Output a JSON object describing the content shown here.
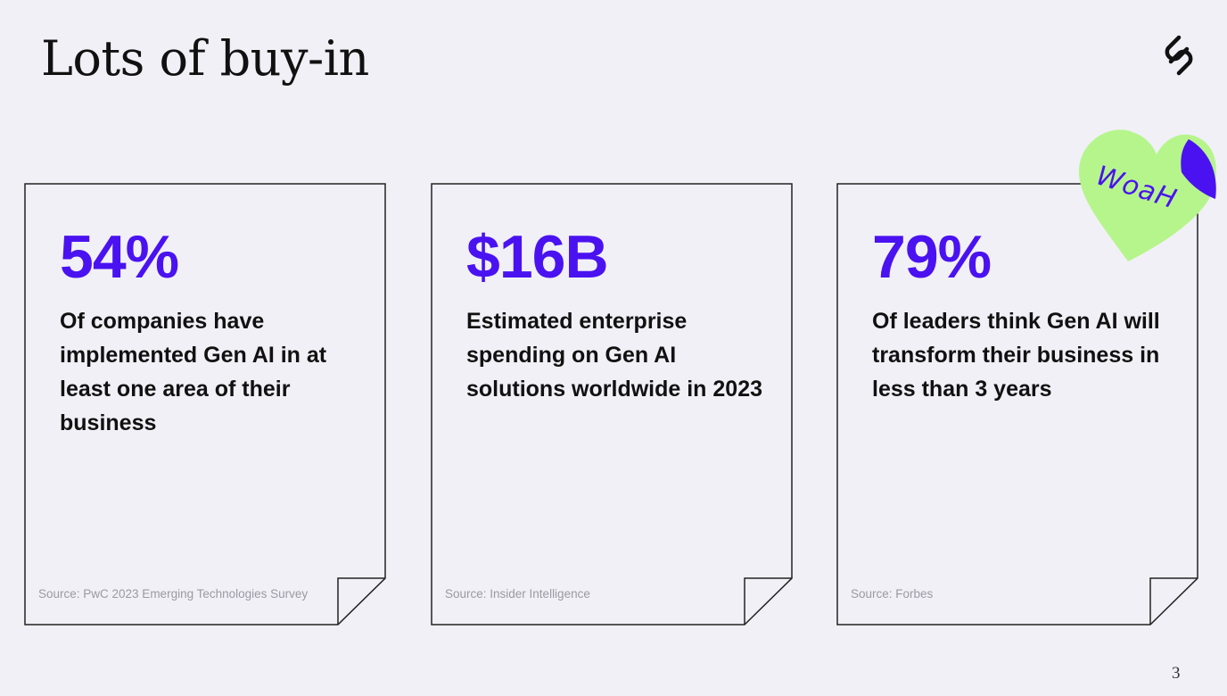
{
  "slide": {
    "title": "Lots of buy-in",
    "page_number": "3"
  },
  "cards": [
    {
      "stat": "54%",
      "description": "Of companies have implemented Gen AI in at least one area of their business",
      "source": "Source: PwC 2023 Emerging Technologies Survey"
    },
    {
      "stat": "$16B",
      "description": "Estimated enterprise spending on Gen AI solutions worldwide in 2023",
      "source": "Source: Insider Intelligence"
    },
    {
      "stat": "79%",
      "description": "Of leaders think Gen AI will transform their business in less than 3 years",
      "source": "Source: Forbes"
    }
  ],
  "sticker": {
    "text": "WoaH",
    "shape": "heart",
    "fill_color": "#b6f58c",
    "fold_color": "#4a12f0"
  },
  "logo": {
    "icon": "paperclip-s-icon"
  },
  "colors": {
    "accent": "#4a12f0",
    "background": "#f1f0f6",
    "text": "#111111",
    "source_text": "#9a9aa3"
  }
}
